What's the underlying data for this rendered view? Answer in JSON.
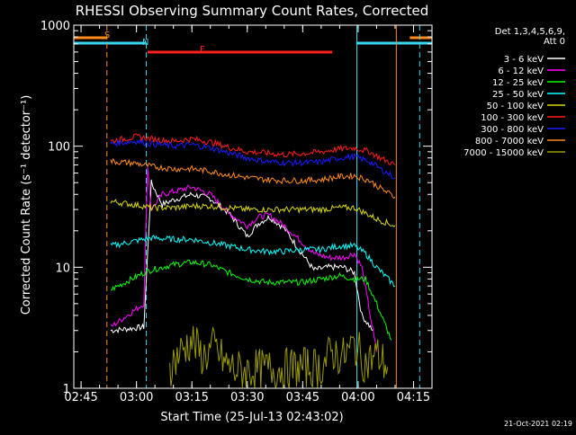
{
  "chart_data": {
    "type": "line",
    "title": "RHESSI Observing Summary Count Rates, Corrected",
    "xlabel": "Start Time (25-Jul-13 02:43:02)",
    "ylabel": "Corrected Count Rate (s⁻¹ detector⁻¹)",
    "ylim": [
      1,
      1000
    ],
    "yscale": "log",
    "xlim": [
      "02:43:02",
      "04:20:00"
    ],
    "x_ticks": [
      "02:45",
      "03:00",
      "03:15",
      "03:30",
      "03:45",
      "04:00",
      "04:15"
    ],
    "y_ticks": [
      "1",
      "10",
      "100",
      "1000"
    ],
    "legend_header": [
      "Det 1,3,4,5,6,9,",
      "Att 0"
    ],
    "legend_position": "right",
    "footer_date": "21-Oct-2021 02:19",
    "flags": [
      {
        "label": "S",
        "color": "#ff8c1a",
        "segments": [
          [
            "02:43:02",
            "02:52:00"
          ],
          [
            "04:14:00",
            "04:20:00"
          ]
        ]
      },
      {
        "label": "N",
        "color": "#3ad7f0",
        "segments": [
          [
            "02:43:02",
            "03:02:30"
          ],
          [
            "03:59:30",
            "04:20:00"
          ]
        ]
      },
      {
        "label": "F",
        "color": "#ff2020",
        "segments": [
          [
            "03:03:00",
            "03:53:00"
          ]
        ]
      }
    ],
    "vertical_lines": [
      {
        "time": "02:52:00",
        "color": "#ff8c1a",
        "style": "dashed"
      },
      {
        "time": "03:02:40",
        "color": "#3ad7f0",
        "style": "dashed"
      },
      {
        "time": "03:59:40",
        "color": "#3ad7f0",
        "style": "solid"
      },
      {
        "time": "04:10:20",
        "color": "#ff8c1a",
        "style": "solid"
      },
      {
        "time": "04:16:40",
        "color": "#3ad7f0",
        "style": "dashed"
      }
    ],
    "series": [
      {
        "name": "3 - 6 keV",
        "color": "#000000",
        "x": [
          "02:53",
          "03:02",
          "03:04",
          "03:07",
          "03:10",
          "03:15",
          "03:20",
          "03:25",
          "03:30",
          "03:33",
          "03:36",
          "03:40",
          "03:44",
          "03:48",
          "03:52",
          "03:56",
          "03:59",
          "04:01",
          "04:04"
        ],
        "values": [
          3.0,
          3.2,
          50,
          33,
          36,
          40,
          37,
          28,
          18,
          23,
          26,
          21,
          14,
          9.5,
          10,
          10,
          9,
          4,
          3
        ]
      },
      {
        "name": "6 - 12 keV",
        "color": "#ff00ff",
        "x": [
          "02:53",
          "03:02",
          "03:03",
          "03:04",
          "03:07",
          "03:10",
          "03:15",
          "03:20",
          "03:25",
          "03:30",
          "03:33",
          "03:36",
          "03:40",
          "03:44",
          "03:48",
          "03:52",
          "03:56",
          "03:59",
          "04:01",
          "04:05"
        ],
        "values": [
          3.2,
          5,
          70,
          30,
          40,
          42,
          46,
          40,
          28,
          22,
          26,
          27,
          22,
          17,
          13,
          12,
          12,
          13,
          10,
          2
        ]
      },
      {
        "name": "12 - 25 keV",
        "color": "#00ff00",
        "x": [
          "02:53",
          "03:02",
          "03:04",
          "03:10",
          "03:15",
          "03:20",
          "03:25",
          "03:30",
          "03:35",
          "03:40",
          "03:45",
          "03:50",
          "03:55",
          "03:59",
          "04:02",
          "04:05",
          "04:09"
        ],
        "values": [
          6.5,
          9,
          9.5,
          10.5,
          11,
          10.5,
          9,
          8,
          7.5,
          7.5,
          7.5,
          8,
          8.5,
          8,
          8,
          5,
          2.5
        ]
      },
      {
        "name": "25 - 50 keV",
        "color": "#00ffff",
        "x": [
          "02:53",
          "03:02",
          "03:04",
          "03:10",
          "03:15",
          "03:20",
          "03:25",
          "03:30",
          "03:35",
          "03:40",
          "03:45",
          "03:50",
          "03:55",
          "03:59",
          "04:02",
          "04:05",
          "04:10"
        ],
        "values": [
          15,
          17,
          17.5,
          17,
          17,
          16,
          15,
          14,
          13.5,
          13.5,
          14,
          14,
          15,
          15,
          13,
          10,
          7
        ]
      },
      {
        "name": "50 - 100 keV",
        "color": "#d8d800",
        "x": [
          "02:53",
          "03:02",
          "03:04",
          "03:10",
          "03:15",
          "03:20",
          "03:25",
          "03:30",
          "03:35",
          "03:40",
          "03:45",
          "03:50",
          "03:55",
          "03:59",
          "04:02",
          "04:05",
          "04:10"
        ],
        "values": [
          35,
          32,
          31,
          31,
          32,
          32,
          31,
          30,
          30,
          30,
          30,
          30,
          31,
          31,
          28,
          25,
          22
        ]
      },
      {
        "name": "100 - 300 keV",
        "color": "#ff1a1a",
        "x": [
          "02:53",
          "03:00",
          "03:04",
          "03:10",
          "03:15",
          "03:20",
          "03:25",
          "03:30",
          "03:35",
          "03:40",
          "03:45",
          "03:50",
          "03:55",
          "03:59",
          "04:03",
          "04:06",
          "04:10"
        ],
        "values": [
          110,
          120,
          115,
          110,
          115,
          108,
          98,
          90,
          88,
          85,
          87,
          90,
          95,
          97,
          90,
          80,
          70
        ]
      },
      {
        "name": "300 - 800 keV",
        "color": "#1a1aff",
        "x": [
          "02:53",
          "03:00",
          "03:04",
          "03:10",
          "03:15",
          "03:20",
          "03:25",
          "03:30",
          "03:35",
          "03:40",
          "03:45",
          "03:50",
          "03:55",
          "03:59",
          "04:03",
          "04:06",
          "04:10"
        ],
        "values": [
          105,
          110,
          105,
          100,
          103,
          97,
          88,
          80,
          75,
          73,
          73,
          74,
          80,
          82,
          75,
          65,
          55
        ]
      },
      {
        "name": "800 - 7000 keV",
        "color": "#ff8c1a",
        "x": [
          "02:53",
          "03:00",
          "03:04",
          "03:10",
          "03:15",
          "03:20",
          "03:25",
          "03:30",
          "03:35",
          "03:40",
          "03:45",
          "03:50",
          "03:55",
          "03:59",
          "04:03",
          "04:06",
          "04:10"
        ],
        "values": [
          75,
          72,
          68,
          65,
          65,
          62,
          58,
          55,
          53,
          52,
          52,
          53,
          56,
          57,
          52,
          45,
          38
        ]
      },
      {
        "name": "7000 - 15000 keV",
        "color": "#9a9a00",
        "x": [
          "03:09",
          "03:12",
          "03:15",
          "03:18",
          "03:21",
          "03:24",
          "03:27",
          "03:50",
          "03:53",
          "03:56",
          "03:59",
          "04:02",
          "04:05",
          "04:08"
        ],
        "values": [
          1.5,
          2.0,
          2.5,
          1.8,
          2.2,
          1.6,
          1.4,
          1.5,
          2.0,
          1.8,
          2.3,
          1.6,
          1.9,
          1.5
        ]
      }
    ]
  }
}
